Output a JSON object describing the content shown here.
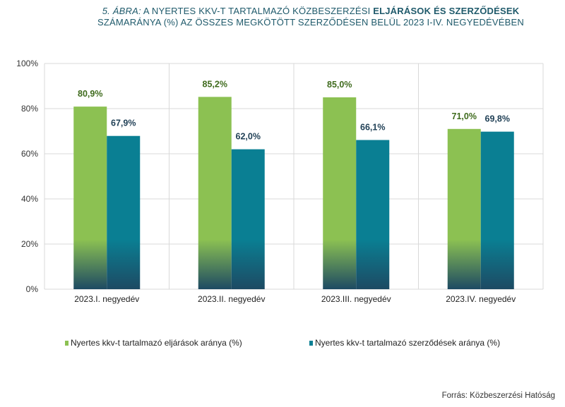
{
  "header": {
    "figure_no": "5. ÁBRA:",
    "title_part1": "A NYERTES KKV-T TARTALMAZÓ KÖZBESZERZÉSI",
    "title_bold": "ELJÁRÁSOK ÉS SZERZŐDÉSEK",
    "title_line2": "SZÁMARÁNYA (%) AZ ÖSSZES MEGKÖTÖTT SZERZŐDÉSEN BELÜL 2023 I-IV. NEGYEDÉVÉBEN"
  },
  "chart_data": {
    "type": "bar",
    "categories": [
      "2023.I. negyedév",
      "2023.II. negyedév",
      "2023.III. negyedév",
      "2023.IV. negyedév"
    ],
    "series": [
      {
        "name": "Nyertes kkv-t tartalmazó eljárások aránya (%)",
        "values": [
          80.9,
          85.2,
          85.0,
          71.0
        ],
        "labels": [
          "80,9%",
          "85,2%",
          "85,0%",
          "71,0%"
        ],
        "color": "#8cc152"
      },
      {
        "name": "Nyertes kkv-t tartalmazó szerződések aránya (%)",
        "values": [
          67.9,
          62.0,
          66.1,
          69.8
        ],
        "labels": [
          "67,9%",
          "62,0%",
          "66,1%",
          "69,8%"
        ],
        "color": "#0a7f93"
      }
    ],
    "y_ticks": [
      "0%",
      "20%",
      "40%",
      "60%",
      "80%",
      "100%"
    ],
    "ylim": [
      0,
      100
    ],
    "grid": true,
    "legend_position": "bottom"
  },
  "footer": {
    "source": "Forrás: Közbeszerzési Hatóság"
  }
}
